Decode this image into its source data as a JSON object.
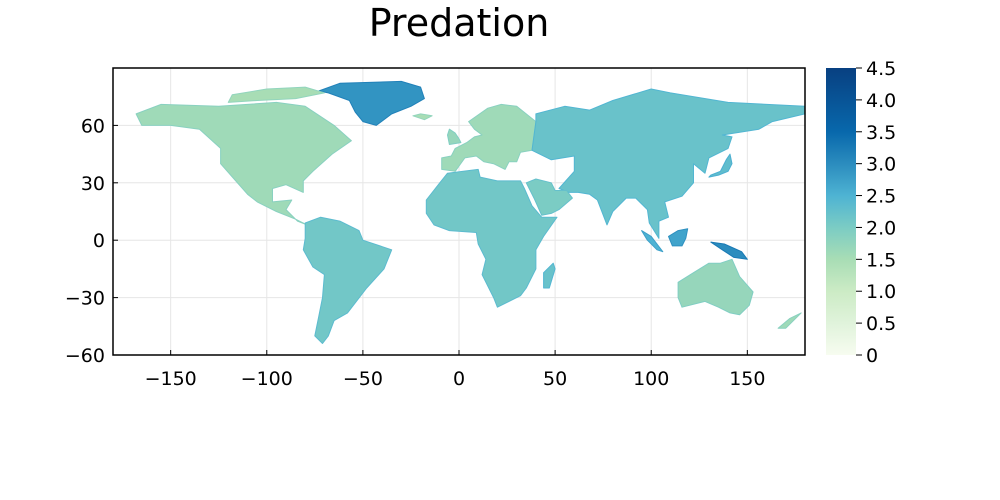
{
  "chart_data": {
    "type": "heatmap",
    "title": "Predation",
    "xlabel": "",
    "ylabel": "",
    "xlim": [
      -180,
      180
    ],
    "ylim": [
      -60,
      90
    ],
    "x_ticks": [
      -150,
      -100,
      -50,
      0,
      50,
      100,
      150
    ],
    "x_tick_labels": [
      "−150",
      "−100",
      "−50",
      "0",
      "50",
      "100",
      "150"
    ],
    "y_ticks": [
      -60,
      -30,
      0,
      30,
      60
    ],
    "y_tick_labels": [
      "−60",
      "−30",
      "0",
      "30",
      "60"
    ],
    "grid": true,
    "legend": "none",
    "colorbar": {
      "position": "right",
      "range": [
        0,
        4.5
      ],
      "ticks": [
        0,
        0.5,
        1.0,
        1.5,
        2.0,
        2.5,
        3.0,
        3.5,
        4.0,
        4.5
      ],
      "tick_labels": [
        "0",
        "0.5",
        "1.0",
        "1.5",
        "2.0",
        "2.5",
        "3.0",
        "3.5",
        "4.0",
        "4.5"
      ],
      "colormap_stops": [
        {
          "value": 0.0,
          "color": "#f7fcf0"
        },
        {
          "value": 0.5,
          "color": "#e0f3db"
        },
        {
          "value": 1.0,
          "color": "#ccebc5"
        },
        {
          "value": 1.5,
          "color": "#a8ddb5"
        },
        {
          "value": 2.0,
          "color": "#7bccc4"
        },
        {
          "value": 2.5,
          "color": "#4eb3d3"
        },
        {
          "value": 3.0,
          "color": "#2b8cbe"
        },
        {
          "value": 3.5,
          "color": "#0868ac"
        },
        {
          "value": 4.5,
          "color": "#084081"
        }
      ]
    },
    "regions": [
      {
        "name": "North America",
        "value": 1.6,
        "outline": [
          [
            -168,
            66
          ],
          [
            -155,
            71
          ],
          [
            -125,
            70
          ],
          [
            -95,
            72
          ],
          [
            -80,
            70
          ],
          [
            -65,
            60
          ],
          [
            -56,
            52
          ],
          [
            -66,
            45
          ],
          [
            -76,
            36
          ],
          [
            -81,
            31
          ],
          [
            -81,
            25
          ],
          [
            -90,
            29
          ],
          [
            -97,
            27
          ],
          [
            -97,
            20
          ],
          [
            -87,
            21
          ],
          [
            -90,
            16
          ],
          [
            -84,
            10
          ],
          [
            -79,
            8
          ],
          [
            -85,
            11
          ],
          [
            -95,
            15
          ],
          [
            -105,
            20
          ],
          [
            -110,
            24
          ],
          [
            -117,
            32
          ],
          [
            -124,
            40
          ],
          [
            -124,
            48
          ],
          [
            -135,
            58
          ],
          [
            -150,
            60
          ],
          [
            -165,
            60
          ]
        ]
      },
      {
        "name": "Greenland",
        "value": 2.9,
        "outline": [
          [
            -73,
            78
          ],
          [
            -62,
            82
          ],
          [
            -30,
            83
          ],
          [
            -20,
            80
          ],
          [
            -18,
            74
          ],
          [
            -25,
            70
          ],
          [
            -35,
            66
          ],
          [
            -43,
            60
          ],
          [
            -50,
            62
          ],
          [
            -54,
            67
          ],
          [
            -57,
            73
          ],
          [
            -68,
            77
          ]
        ]
      },
      {
        "name": "Canadian Arctic Islands",
        "value": 1.5,
        "outline": [
          [
            -120,
            72
          ],
          [
            -105,
            73
          ],
          [
            -85,
            74
          ],
          [
            -70,
            77
          ],
          [
            -80,
            80
          ],
          [
            -100,
            79
          ],
          [
            -118,
            76
          ]
        ]
      },
      {
        "name": "South America",
        "value": 2.1,
        "outline": [
          [
            -80,
            9
          ],
          [
            -72,
            12
          ],
          [
            -62,
            10
          ],
          [
            -52,
            5
          ],
          [
            -50,
            0
          ],
          [
            -35,
            -5
          ],
          [
            -39,
            -15
          ],
          [
            -48,
            -25
          ],
          [
            -58,
            -38
          ],
          [
            -65,
            -42
          ],
          [
            -68,
            -50
          ],
          [
            -71,
            -54
          ],
          [
            -75,
            -50
          ],
          [
            -73,
            -40
          ],
          [
            -71,
            -30
          ],
          [
            -70,
            -18
          ],
          [
            -76,
            -14
          ],
          [
            -81,
            -5
          ],
          [
            -80,
            1
          ]
        ]
      },
      {
        "name": "Europe",
        "value": 1.6,
        "outline": [
          [
            -9,
            43
          ],
          [
            -9,
            37
          ],
          [
            -2,
            36
          ],
          [
            3,
            43
          ],
          [
            9,
            44
          ],
          [
            13,
            41
          ],
          [
            18,
            40
          ],
          [
            24,
            37
          ],
          [
            26,
            41
          ],
          [
            30,
            41
          ],
          [
            32,
            46
          ],
          [
            38,
            47
          ],
          [
            40,
            62
          ],
          [
            30,
            70
          ],
          [
            22,
            71
          ],
          [
            15,
            69
          ],
          [
            5,
            62
          ],
          [
            8,
            58
          ],
          [
            12,
            55
          ],
          [
            8,
            54
          ],
          [
            4,
            51
          ],
          [
            -2,
            48
          ],
          [
            -4,
            44
          ]
        ]
      },
      {
        "name": "Africa",
        "value": 2.1,
        "outline": [
          [
            -17,
            21
          ],
          [
            -10,
            30
          ],
          [
            -6,
            35
          ],
          [
            10,
            37
          ],
          [
            11,
            33
          ],
          [
            20,
            31
          ],
          [
            32,
            31
          ],
          [
            34,
            27
          ],
          [
            38,
            18
          ],
          [
            43,
            12
          ],
          [
            51,
            12
          ],
          [
            44,
            2
          ],
          [
            40,
            -5
          ],
          [
            40,
            -15
          ],
          [
            35,
            -25
          ],
          [
            32,
            -29
          ],
          [
            20,
            -35
          ],
          [
            18,
            -30
          ],
          [
            12,
            -18
          ],
          [
            14,
            -10
          ],
          [
            10,
            -2
          ],
          [
            9,
            4
          ],
          [
            -5,
            5
          ],
          [
            -13,
            8
          ],
          [
            -17,
            14
          ]
        ]
      },
      {
        "name": "Asia",
        "value": 2.2,
        "outline": [
          [
            38,
            47
          ],
          [
            48,
            42
          ],
          [
            60,
            44
          ],
          [
            60,
            36
          ],
          [
            52,
            27
          ],
          [
            57,
            25
          ],
          [
            62,
            25
          ],
          [
            68,
            24
          ],
          [
            72,
            21
          ],
          [
            77,
            8
          ],
          [
            80,
            15
          ],
          [
            87,
            22
          ],
          [
            92,
            22
          ],
          [
            98,
            16
          ],
          [
            99,
            9
          ],
          [
            104,
            1
          ],
          [
            104,
            10
          ],
          [
            109,
            12
          ],
          [
            107,
            20
          ],
          [
            116,
            23
          ],
          [
            122,
            30
          ],
          [
            122,
            40
          ],
          [
            128,
            35
          ],
          [
            130,
            43
          ],
          [
            140,
            48
          ],
          [
            142,
            54
          ],
          [
            137,
            55
          ],
          [
            156,
            58
          ],
          [
            163,
            62
          ],
          [
            180,
            66
          ],
          [
            180,
            70
          ],
          [
            140,
            72
          ],
          [
            110,
            77
          ],
          [
            100,
            79
          ],
          [
            80,
            73
          ],
          [
            68,
            68
          ],
          [
            55,
            70
          ],
          [
            40,
            66
          ],
          [
            40,
            62
          ]
        ]
      },
      {
        "name": "Arabia",
        "value": 2.0,
        "outline": [
          [
            35,
            30
          ],
          [
            39,
            22
          ],
          [
            43,
            13
          ],
          [
            48,
            14
          ],
          [
            52,
            16
          ],
          [
            59,
            22
          ],
          [
            56,
            26
          ],
          [
            50,
            26
          ],
          [
            48,
            30
          ],
          [
            40,
            32
          ]
        ]
      },
      {
        "name": "Australia",
        "value": 1.7,
        "outline": [
          [
            114,
            -22
          ],
          [
            122,
            -17
          ],
          [
            130,
            -12
          ],
          [
            136,
            -12
          ],
          [
            142,
            -10
          ],
          [
            146,
            -19
          ],
          [
            153,
            -27
          ],
          [
            151,
            -34
          ],
          [
            146,
            -39
          ],
          [
            141,
            -38
          ],
          [
            135,
            -35
          ],
          [
            128,
            -32
          ],
          [
            116,
            -35
          ],
          [
            114,
            -30
          ]
        ]
      },
      {
        "name": "New Guinea",
        "value": 3.0,
        "outline": [
          [
            131,
            -1
          ],
          [
            138,
            -2
          ],
          [
            147,
            -6
          ],
          [
            150,
            -10
          ],
          [
            143,
            -9
          ],
          [
            137,
            -5
          ]
        ]
      },
      {
        "name": "Borneo",
        "value": 2.7,
        "outline": [
          [
            109,
            2
          ],
          [
            114,
            5
          ],
          [
            119,
            6
          ],
          [
            118,
            1
          ],
          [
            116,
            -3
          ],
          [
            111,
            -3
          ]
        ]
      },
      {
        "name": "Sumatra",
        "value": 2.5,
        "outline": [
          [
            95,
            5
          ],
          [
            100,
            2
          ],
          [
            106,
            -6
          ],
          [
            103,
            -5
          ],
          [
            98,
            0
          ]
        ]
      },
      {
        "name": "Japan",
        "value": 2.3,
        "outline": [
          [
            130,
            33
          ],
          [
            135,
            34
          ],
          [
            140,
            36
          ],
          [
            142,
            40
          ],
          [
            141,
            45
          ],
          [
            139,
            42
          ],
          [
            136,
            36
          ],
          [
            131,
            34
          ]
        ]
      },
      {
        "name": "Madagascar",
        "value": 2.2,
        "outline": [
          [
            44,
            -25
          ],
          [
            47,
            -25
          ],
          [
            50,
            -15
          ],
          [
            49,
            -12
          ],
          [
            44,
            -17
          ]
        ]
      },
      {
        "name": "New Zealand",
        "value": 1.6,
        "outline": [
          [
            166,
            -46
          ],
          [
            172,
            -41
          ],
          [
            178,
            -38
          ],
          [
            175,
            -41
          ],
          [
            170,
            -46
          ]
        ]
      },
      {
        "name": "Great Britain",
        "value": 1.7,
        "outline": [
          [
            -5,
            50
          ],
          [
            1,
            51
          ],
          [
            0,
            53
          ],
          [
            -2,
            56
          ],
          [
            -5,
            58
          ],
          [
            -6,
            55
          ]
        ]
      },
      {
        "name": "Iceland",
        "value": 1.5,
        "outline": [
          [
            -24,
            65
          ],
          [
            -20,
            66
          ],
          [
            -14,
            65
          ],
          [
            -18,
            63
          ]
        ]
      }
    ]
  }
}
